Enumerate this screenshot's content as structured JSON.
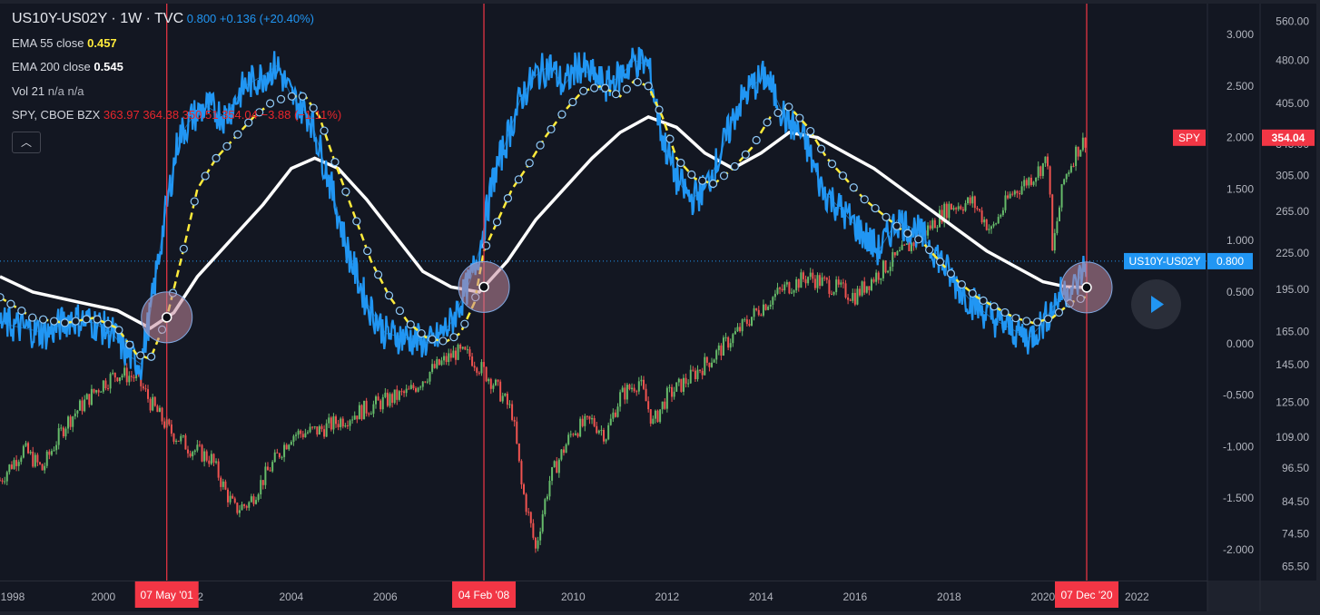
{
  "header": {
    "symbol": "US10Y-US02Y",
    "sep1": " · ",
    "interval": "1W",
    "sep2": " · ",
    "source": "TVC",
    "last": "0.800",
    "change": "+0.136",
    "change_pct": "(+20.40%)"
  },
  "indicators": [
    {
      "name": "EMA 55 close",
      "value": "0.457",
      "style": "v-yellow"
    },
    {
      "name": "EMA 200 close",
      "value": "0.545",
      "style": "v-white"
    },
    {
      "name": "Vol 21",
      "value": "n/a n/a",
      "style": "v-grey"
    }
  ],
  "overlay": {
    "name": "SPY, CBOE BZX",
    "open": "363.97",
    "high": "364.38",
    "low": "350.51",
    "close": "354.04",
    "change": "−3.88",
    "change_pct": "(−1.11%)"
  },
  "colors": {
    "background": "#131722",
    "spread": "#2196f3",
    "ema55": "#ffeb3b",
    "ema200": "#ffffff",
    "spy_up": "#66bb6a",
    "spy_down": "#ef5350",
    "marker": "#f23645",
    "circle": "#c48b9f"
  },
  "chart_data": {
    "type": "line",
    "x_ticks": [
      "1998",
      "2000",
      "02",
      "2004",
      "2006",
      "2008",
      "2010",
      "2012",
      "2014",
      "2016",
      "2018",
      "2020",
      "2022"
    ],
    "x_range": [
      1997.8,
      2023.5
    ],
    "left_axis": {
      "label": "US10Y-US02Y",
      "range": [
        -2.3,
        3.3
      ],
      "ticks": [
        "3.000",
        "2.500",
        "2.000",
        "1.500",
        "1.000",
        "0.500",
        "0.000",
        "-0.500",
        "-1.000",
        "-1.500",
        "-2.000"
      ]
    },
    "right_axis": {
      "label": "SPY",
      "scale": "log",
      "range": [
        62,
        600
      ],
      "ticks": [
        "560.00",
        "480.00",
        "405.00",
        "345.00",
        "305.00",
        "265.00",
        "225.00",
        "195.00",
        "165.00",
        "145.00",
        "125.00",
        "109.00",
        "96.50",
        "84.50",
        "74.50",
        "65.50"
      ]
    },
    "series": [
      {
        "name": "US10Y-US02Y",
        "axis": "left",
        "x": [
          1997.8,
          1998.3,
          1998.8,
          1999.3,
          1999.8,
          2000.2,
          2000.5,
          2000.8,
          2001.0,
          2001.3,
          2001.6,
          2001.9,
          2002.2,
          2002.6,
          2003.0,
          2003.4,
          2003.7,
          2004.0,
          2004.4,
          2004.8,
          2005.2,
          2005.6,
          2006.0,
          2006.5,
          2007.0,
          2007.4,
          2007.8,
          2008.0,
          2008.3,
          2008.6,
          2008.9,
          2009.2,
          2009.5,
          2009.8,
          2010.1,
          2010.4,
          2010.7,
          2011.0,
          2011.3,
          2011.6,
          2011.9,
          2012.2,
          2012.5,
          2012.8,
          2013.1,
          2013.5,
          2013.8,
          2014.1,
          2014.5,
          2014.9,
          2015.3,
          2015.7,
          2016.1,
          2016.5,
          2016.9,
          2017.3,
          2017.7,
          2018.1,
          2018.5,
          2018.9,
          2019.3,
          2019.7,
          2020.0,
          2020.4,
          2020.7,
          2020.93
        ],
        "values": [
          0.2,
          0.15,
          0.1,
          0.25,
          0.2,
          0.1,
          -0.1,
          -0.2,
          0.3,
          1.2,
          2.0,
          2.2,
          2.3,
          2.2,
          2.5,
          2.6,
          2.7,
          2.4,
          2.2,
          1.6,
          0.9,
          0.4,
          0.1,
          0.05,
          0.0,
          0.2,
          0.6,
          0.9,
          1.6,
          2.0,
          2.4,
          2.6,
          2.7,
          2.5,
          2.7,
          2.6,
          2.5,
          2.6,
          2.75,
          2.7,
          2.0,
          1.6,
          1.4,
          1.5,
          1.8,
          2.3,
          2.5,
          2.6,
          2.2,
          2.0,
          1.5,
          1.3,
          1.1,
          0.9,
          1.2,
          1.1,
          0.9,
          0.6,
          0.4,
          0.25,
          0.15,
          0.05,
          0.2,
          0.5,
          0.55,
          0.8
        ]
      },
      {
        "name": "EMA 55 close",
        "axis": "left",
        "x": [
          1997.8,
          1998.5,
          1999.2,
          1999.8,
          2000.3,
          2000.7,
          2001.0,
          2001.35,
          2001.7,
          2002.0,
          2002.4,
          2002.8,
          2003.2,
          2003.6,
          2004.0,
          2004.3,
          2004.6,
          2004.9,
          2005.3,
          2005.7,
          2006.1,
          2006.5,
          2006.9,
          2007.3,
          2007.6,
          2007.9,
          2008.1,
          2008.4,
          2008.7,
          2009.0,
          2009.4,
          2009.8,
          2010.2,
          2010.6,
          2011.0,
          2011.3,
          2011.6,
          2011.9,
          2012.2,
          2012.6,
          2013.0,
          2013.4,
          2013.8,
          2014.2,
          2014.6,
          2015.0,
          2015.4,
          2015.8,
          2016.2,
          2016.6,
          2017.0,
          2017.4,
          2017.8,
          2018.2,
          2018.6,
          2019.0,
          2019.4,
          2019.8,
          2020.2,
          2020.6,
          2020.93
        ],
        "values": [
          0.45,
          0.25,
          0.2,
          0.25,
          0.15,
          -0.1,
          -0.15,
          0.25,
          0.9,
          1.5,
          1.8,
          2.0,
          2.2,
          2.35,
          2.4,
          2.4,
          2.2,
          1.8,
          1.3,
          0.8,
          0.45,
          0.2,
          0.05,
          0.02,
          0.1,
          0.4,
          0.9,
          1.2,
          1.5,
          1.7,
          2.0,
          2.25,
          2.45,
          2.5,
          2.4,
          2.55,
          2.5,
          2.2,
          1.8,
          1.6,
          1.55,
          1.7,
          1.9,
          2.2,
          2.3,
          2.1,
          1.8,
          1.6,
          1.4,
          1.25,
          1.1,
          1.0,
          0.8,
          0.6,
          0.45,
          0.35,
          0.25,
          0.2,
          0.25,
          0.4,
          0.457
        ]
      },
      {
        "name": "EMA 200 close",
        "axis": "left",
        "x": [
          1997.8,
          1998.5,
          1999.5,
          2000.3,
          2001.0,
          2001.5,
          2002.0,
          2002.7,
          2003.4,
          2004.0,
          2004.5,
          2005.0,
          2005.6,
          2006.2,
          2006.8,
          2007.4,
          2008.0,
          2008.6,
          2009.2,
          2009.8,
          2010.4,
          2011.0,
          2011.6,
          2012.2,
          2012.8,
          2013.4,
          2014.0,
          2014.6,
          2015.2,
          2015.8,
          2016.4,
          2017.0,
          2017.6,
          2018.2,
          2018.8,
          2019.4,
          2020.0,
          2020.5,
          2020.93
        ],
        "values": [
          0.65,
          0.5,
          0.4,
          0.32,
          0.15,
          0.3,
          0.65,
          1.0,
          1.35,
          1.7,
          1.8,
          1.7,
          1.4,
          1.05,
          0.7,
          0.55,
          0.5,
          0.8,
          1.2,
          1.5,
          1.8,
          2.05,
          2.2,
          2.1,
          1.85,
          1.7,
          1.85,
          2.05,
          2.0,
          1.85,
          1.7,
          1.5,
          1.3,
          1.1,
          0.9,
          0.75,
          0.6,
          0.55,
          0.545
        ]
      },
      {
        "name": "SPY",
        "axis": "right",
        "x": [
          1997.8,
          1998.3,
          1998.7,
          1999.2,
          1999.6,
          2000.0,
          2000.3,
          2000.7,
          2001.0,
          2001.4,
          2001.8,
          2002.3,
          2002.6,
          2002.8,
          2003.1,
          2003.6,
          2004.0,
          2004.6,
          2005.2,
          2005.8,
          2006.5,
          2007.0,
          2007.5,
          2007.8,
          2008.3,
          2008.7,
          2008.9,
          2009.2,
          2009.5,
          2010.0,
          2010.4,
          2010.7,
          2011.0,
          2011.4,
          2011.7,
          2012.0,
          2012.5,
          2013.0,
          2013.5,
          2014.0,
          2014.5,
          2015.0,
          2015.6,
          2016.0,
          2016.5,
          2017.0,
          2017.5,
          2018.0,
          2018.5,
          2018.9,
          2019.3,
          2019.8,
          2020.1,
          2020.2,
          2020.45,
          2020.7,
          2020.93
        ],
        "values": [
          92,
          104,
          96,
          115,
          125,
          135,
          140,
          138,
          125,
          112,
          105,
          100,
          88,
          82,
          84,
          98,
          110,
          112,
          118,
          124,
          130,
          142,
          152,
          150,
          135,
          120,
          90,
          70,
          92,
          112,
          116,
          110,
          128,
          136,
          115,
          128,
          138,
          150,
          165,
          182,
          196,
          205,
          196,
          190,
          208,
          225,
          245,
          270,
          275,
          245,
          282,
          305,
          325,
          225,
          300,
          335,
          354.04
        ]
      }
    ],
    "vertical_markers": [
      "07 May '01",
      "04 Feb '08",
      "07 Dec '20"
    ],
    "price_labels": {
      "spread": "US10Y-US02Y",
      "spread_value": "0.800",
      "spy": "SPY",
      "spy_value": "354.04"
    },
    "grid": false,
    "legend": "top-left"
  }
}
